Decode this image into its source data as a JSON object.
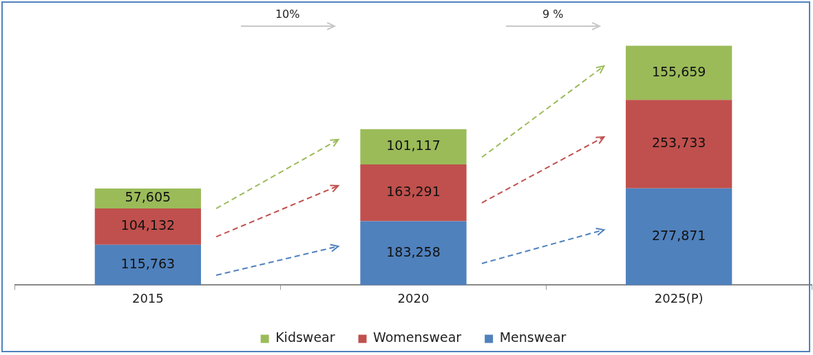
{
  "chart_data": {
    "type": "bar",
    "stacked": true,
    "categories": [
      "2015",
      "2020",
      "2025(P)"
    ],
    "series": [
      {
        "name": "Menswear",
        "color": "#4f81bd",
        "values": [
          115763,
          183258,
          277871
        ],
        "value_labels": [
          "115,763",
          "183,258",
          "277,871"
        ]
      },
      {
        "name": "Womenswear",
        "color": "#c0504d",
        "values": [
          104132,
          163291,
          253733
        ],
        "value_labels": [
          "104,132",
          "163,291",
          "253,733"
        ]
      },
      {
        "name": "Kidswear",
        "color": "#9bbb59",
        "values": [
          57605,
          101117,
          155659
        ],
        "value_labels": [
          "57,605",
          "101,117",
          "155,659"
        ]
      }
    ],
    "legend": "bottom",
    "grid": false,
    "tick_labels": "x",
    "annotations": [
      "10%",
      "9 %"
    ]
  }
}
